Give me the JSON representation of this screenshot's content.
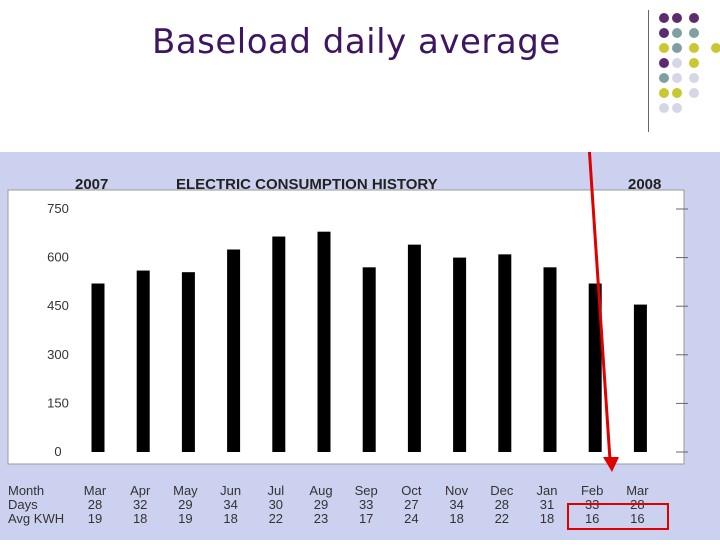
{
  "slide": {
    "title": "Baseload daily average"
  },
  "decoration": {
    "dot_colors": [
      "#5b2c6f",
      "#7fa0a0",
      "#c8c832",
      "#d6d6e6"
    ]
  },
  "colors": {
    "bar": "#000000",
    "panel": "#cbd1ee",
    "arrow": "#e00000",
    "highlight_box": "#e00000",
    "title": "#3d1560"
  },
  "chart_data": {
    "type": "bar",
    "title": "ELECTRIC CONSUMPTION HISTORY",
    "year_left": "2007",
    "year_right": "2008",
    "ylim": [
      0,
      750
    ],
    "yticks": [
      {
        "value": 750,
        "label": "750"
      },
      {
        "value": 600,
        "label": "600"
      },
      {
        "value": 450,
        "label": "450"
      },
      {
        "value": 300,
        "label": "300"
      },
      {
        "value": 150,
        "label": "150"
      },
      {
        "value": 0,
        "label": "0"
      }
    ],
    "categories": [
      "Mar",
      "Apr",
      "May",
      "Jun",
      "Jul",
      "Aug",
      "Sep",
      "Oct",
      "Nov",
      "Dec",
      "Jan",
      "Feb",
      "Mar"
    ],
    "values": [
      520,
      560,
      555,
      625,
      665,
      680,
      570,
      640,
      600,
      610,
      570,
      520,
      455
    ],
    "table": {
      "row_labels": [
        "Month",
        "Days",
        "Avg KWH"
      ],
      "days": [
        "28",
        "32",
        "29",
        "34",
        "30",
        "29",
        "33",
        "27",
        "34",
        "28",
        "31",
        "33",
        "28"
      ],
      "avg_kwh": [
        "19",
        "18",
        "19",
        "18",
        "22",
        "23",
        "17",
        "24",
        "18",
        "22",
        "18",
        "16",
        "16"
      ]
    }
  }
}
